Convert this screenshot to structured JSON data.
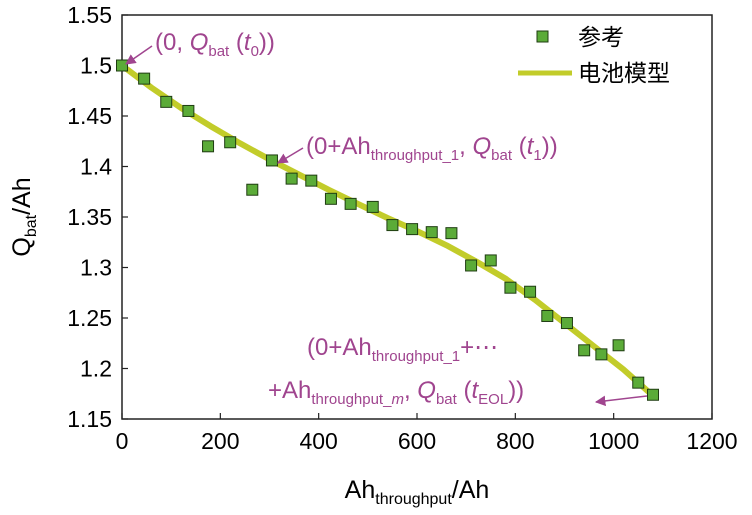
{
  "chart_data": {
    "type": "scatter+line",
    "title": "",
    "xlabel": {
      "main": "Ah",
      "sub": "throughput",
      "tail": "/Ah"
    },
    "ylabel": {
      "main": "Q",
      "sub": "bat",
      "tail": "/Ah"
    },
    "xlim": [
      0,
      1200
    ],
    "ylim": [
      1.15,
      1.55
    ],
    "x_ticks": [
      0,
      200,
      400,
      600,
      800,
      1000,
      1200
    ],
    "x_tick_labels": [
      "0",
      "200",
      "400",
      "600",
      "800",
      "1000",
      "1200"
    ],
    "y_ticks": [
      1.15,
      1.2,
      1.25,
      1.3,
      1.35,
      1.4,
      1.45,
      1.5,
      1.55
    ],
    "y_tick_labels": [
      "1.15",
      "1.2",
      "1.25",
      "1.3",
      "1.35",
      "1.4",
      "1.45",
      "1.5",
      "1.55"
    ],
    "grid": false,
    "legend_position": "top-right",
    "colors": {
      "marker_fill": "#5bab38",
      "marker_edge": "#1f3d12",
      "line": "#c2cc2a",
      "annotation": "#a0458f"
    },
    "series": [
      {
        "name": "参考",
        "kind": "scatter",
        "marker": "square",
        "x": [
          0,
          45,
          90,
          135,
          175,
          220,
          265,
          305,
          345,
          385,
          425,
          465,
          510,
          550,
          590,
          630,
          670,
          710,
          750,
          790,
          830,
          865,
          905,
          940,
          975,
          1010,
          1050,
          1080
        ],
        "y": [
          1.5,
          1.487,
          1.464,
          1.455,
          1.42,
          1.424,
          1.377,
          1.406,
          1.388,
          1.386,
          1.368,
          1.363,
          1.36,
          1.342,
          1.338,
          1.335,
          1.334,
          1.302,
          1.307,
          1.28,
          1.276,
          1.252,
          1.245,
          1.218,
          1.214,
          1.223,
          1.186,
          1.174
        ]
      },
      {
        "name": "电池模型",
        "kind": "line",
        "x": [
          0,
          60,
          120,
          180,
          240,
          300,
          360,
          420,
          480,
          540,
          600,
          660,
          720,
          780,
          840,
          900,
          960,
          1020,
          1080
        ],
        "y": [
          1.5,
          1.478,
          1.458,
          1.44,
          1.423,
          1.407,
          1.392,
          1.377,
          1.363,
          1.349,
          1.336,
          1.322,
          1.306,
          1.289,
          1.268,
          1.245,
          1.222,
          1.199,
          1.173
        ]
      }
    ],
    "annotations": [
      {
        "id": "a0",
        "parts": [
          "(0, ",
          "Q",
          "bat",
          " (",
          "t",
          "0",
          "))"
        ]
      },
      {
        "id": "a1",
        "parts": [
          "(0+Ah",
          "throughput_1",
          ", ",
          "Q",
          "bat",
          " (",
          "t",
          "1",
          "))"
        ]
      },
      {
        "id": "a2a",
        "parts": [
          "(0+Ah",
          "throughput_1",
          "+⋯"
        ]
      },
      {
        "id": "a2b",
        "parts": [
          "+Ah",
          "throughput_",
          "m",
          ", ",
          "Q",
          "bat",
          " (",
          "t",
          "EOL",
          "))"
        ]
      }
    ]
  }
}
